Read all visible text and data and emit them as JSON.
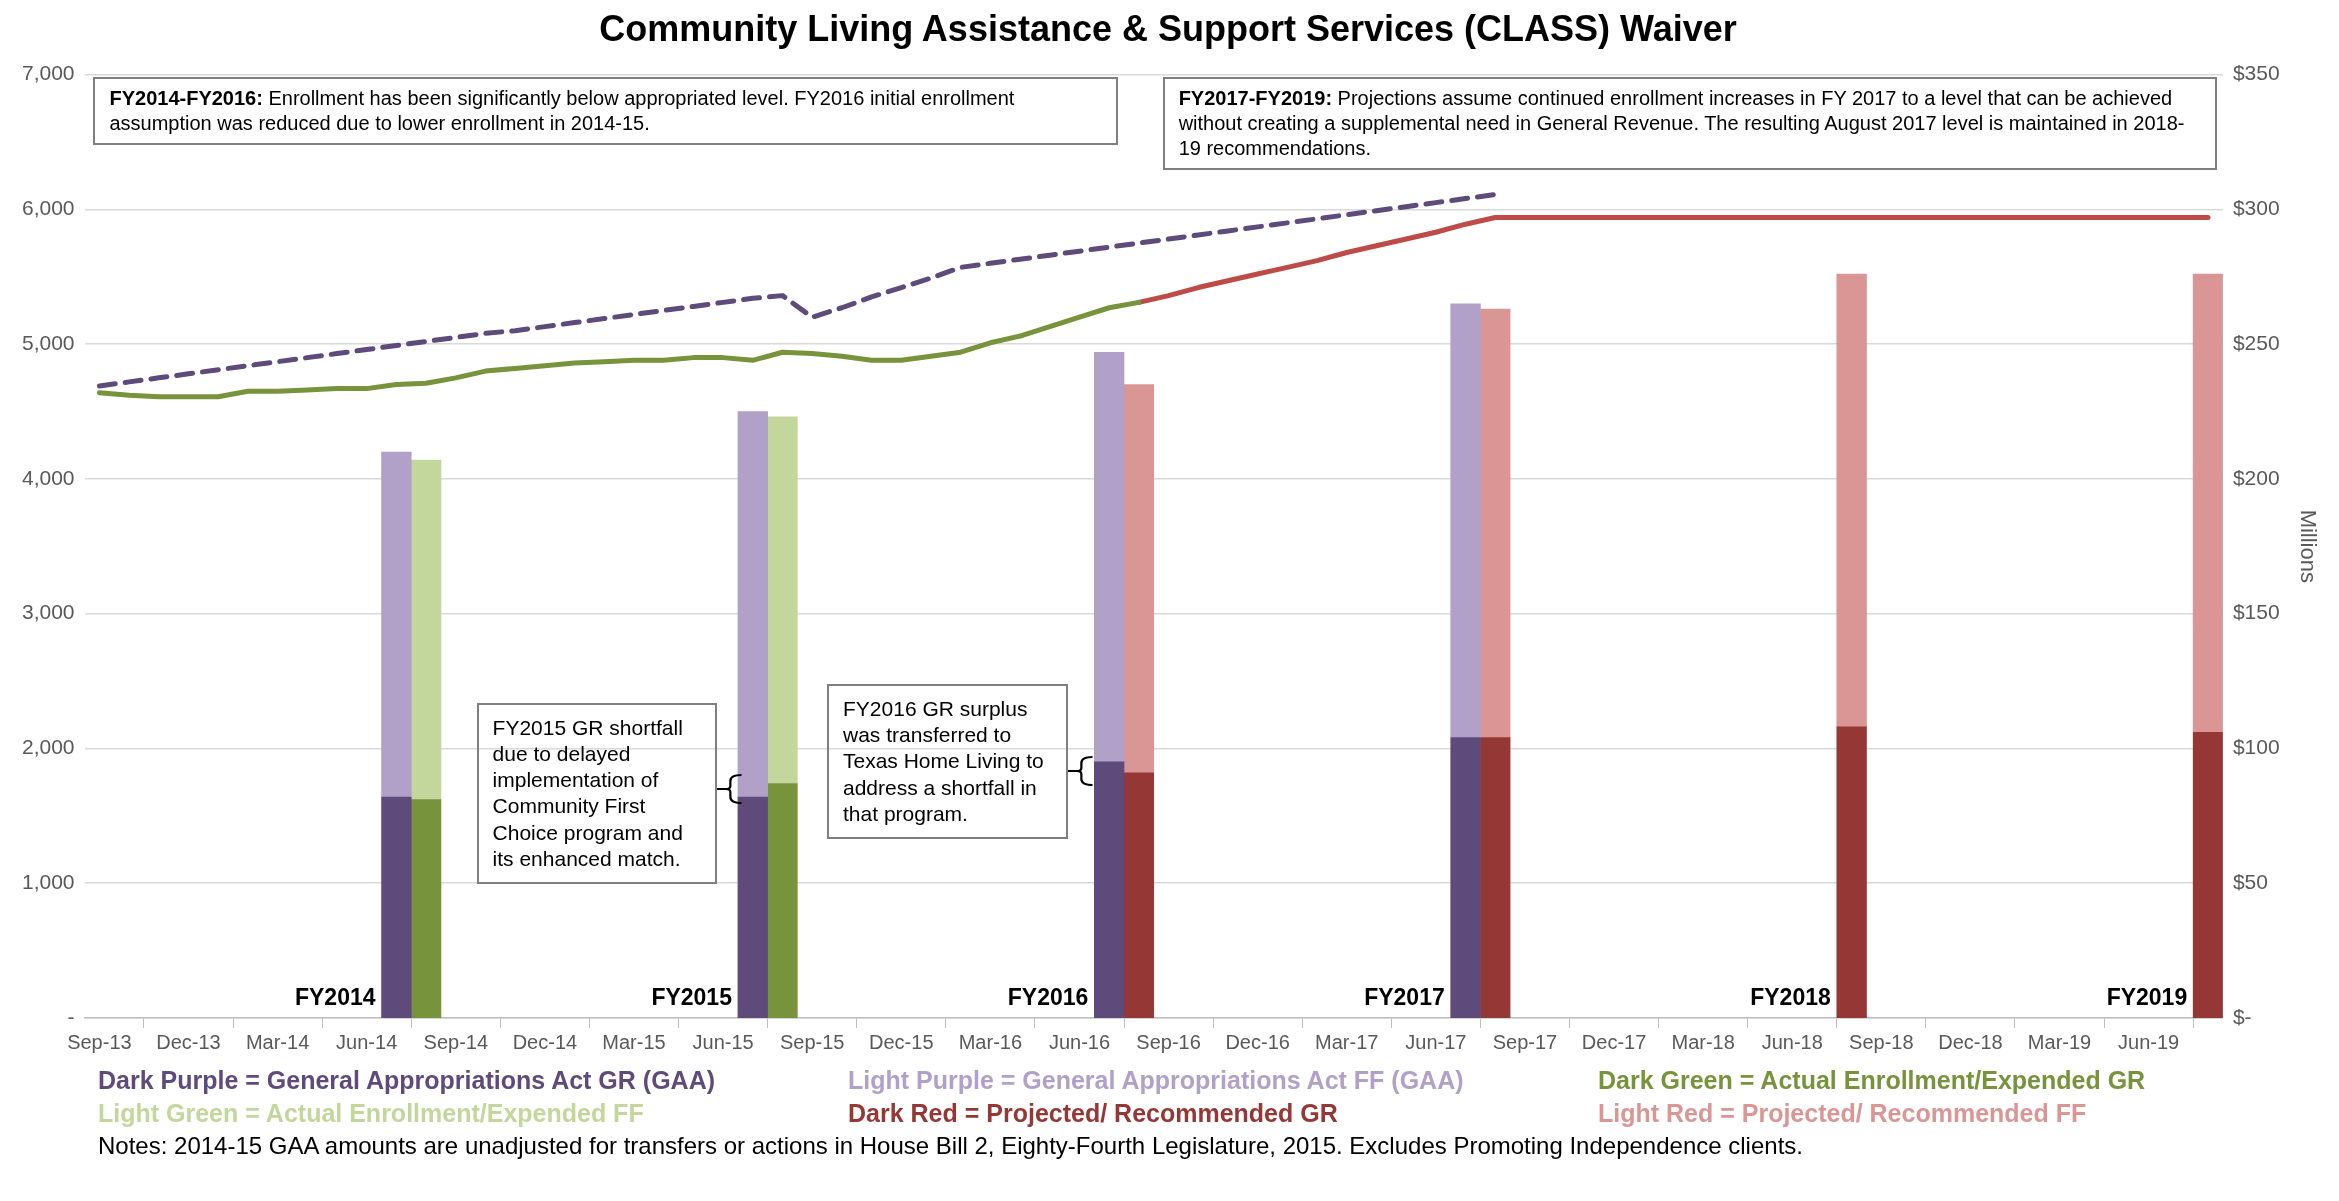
{
  "chart_data": {
    "type": "bar",
    "title": "Community Living Assistance & Support Services (CLASS) Waiver",
    "y2label": "Millions",
    "categories": [
      "Sep-13",
      null,
      null,
      "Dec-13",
      null,
      null,
      "Mar-14",
      null,
      null,
      "Jun-14",
      null,
      null,
      "Sep-14",
      null,
      null,
      "Dec-14",
      null,
      null,
      "Mar-15",
      null,
      null,
      "Jun-15",
      null,
      null,
      "Sep-15",
      null,
      null,
      "Dec-15",
      null,
      null,
      "Mar-16",
      null,
      null,
      "Jun-16",
      null,
      null,
      "Sep-16",
      null,
      null,
      "Dec-16",
      null,
      null,
      "Mar-17",
      null,
      null,
      "Jun-17",
      null,
      null,
      "Sep-17",
      null,
      null,
      "Dec-17",
      null,
      null,
      "Mar-18",
      null,
      null,
      "Jun-18",
      null,
      null,
      "Sep-18",
      null,
      null,
      "Dec-18",
      null,
      null,
      "Mar-19",
      null,
      null,
      "Jun-19",
      null,
      null
    ],
    "series": [
      {
        "name": "Dark Purple = General Appropriations Act GR (GAA)",
        "color": "#5f4b7b",
        "axis": "y2",
        "values": [
          null,
          null,
          null,
          null,
          null,
          null,
          null,
          null,
          null,
          null,
          82,
          null,
          null,
          null,
          null,
          null,
          null,
          null,
          null,
          null,
          null,
          null,
          82,
          null,
          null,
          null,
          null,
          null,
          null,
          null,
          null,
          null,
          null,
          null,
          95,
          null,
          null,
          null,
          null,
          null,
          null,
          null,
          null,
          null,
          null,
          null,
          104,
          null,
          null,
          null,
          null,
          null,
          null,
          null,
          null,
          null,
          null,
          null,
          null,
          null,
          null,
          null,
          null,
          null,
          null,
          null,
          null,
          null,
          null,
          null,
          null,
          null
        ]
      },
      {
        "name": "Light Purple = General Appropriations Act FF (GAA)",
        "color": "#b1a0c7",
        "axis": "y2",
        "values": [
          null,
          null,
          null,
          null,
          null,
          null,
          null,
          null,
          null,
          null,
          128,
          null,
          null,
          null,
          null,
          null,
          null,
          null,
          null,
          null,
          null,
          null,
          143,
          null,
          null,
          null,
          null,
          null,
          null,
          null,
          null,
          null,
          null,
          null,
          152,
          null,
          null,
          null,
          null,
          null,
          null,
          null,
          null,
          null,
          null,
          null,
          161,
          null,
          null,
          null,
          null,
          null,
          null,
          null,
          null,
          null,
          null,
          null,
          null,
          null,
          null,
          null,
          null,
          null,
          null,
          null,
          null,
          null,
          null,
          null,
          null,
          null
        ]
      },
      {
        "name": "Dark Green = Actual Enrollment/Expended GR",
        "color": "#77933c",
        "axis": "y2",
        "values": [
          null,
          null,
          null,
          null,
          null,
          null,
          null,
          null,
          null,
          null,
          null,
          81,
          null,
          null,
          null,
          null,
          null,
          null,
          null,
          null,
          null,
          null,
          null,
          87,
          null,
          null,
          null,
          null,
          null,
          null,
          null,
          null,
          null,
          null,
          null,
          null,
          null,
          null,
          null,
          null,
          null,
          null,
          null,
          null,
          null,
          null,
          null,
          null,
          null,
          null,
          null,
          null,
          null,
          null,
          null,
          null,
          null,
          null,
          null,
          null,
          null,
          null,
          null,
          null,
          null,
          null,
          null,
          null,
          null,
          null,
          null,
          null
        ]
      },
      {
        "name": "Light Green = Actual Enrollment/Expended FF",
        "color": "#c3d69b",
        "axis": "y2",
        "values": [
          null,
          null,
          null,
          null,
          null,
          null,
          null,
          null,
          null,
          null,
          null,
          126,
          null,
          null,
          null,
          null,
          null,
          null,
          null,
          null,
          null,
          null,
          null,
          136,
          null,
          null,
          null,
          null,
          null,
          null,
          null,
          null,
          null,
          null,
          null,
          null,
          null,
          null,
          null,
          null,
          null,
          null,
          null,
          null,
          null,
          null,
          null,
          null,
          null,
          null,
          null,
          null,
          null,
          null,
          null,
          null,
          null,
          null,
          null,
          null,
          null,
          null,
          null,
          null,
          null,
          null,
          null,
          null,
          null,
          null,
          null,
          null
        ]
      },
      {
        "name": "Dark Red = Projected/ Recommended GR",
        "color": "#953735",
        "axis": "y2",
        "values": [
          null,
          null,
          null,
          null,
          null,
          null,
          null,
          null,
          null,
          null,
          null,
          null,
          null,
          null,
          null,
          null,
          null,
          null,
          null,
          null,
          null,
          null,
          null,
          null,
          null,
          null,
          null,
          null,
          null,
          null,
          null,
          null,
          null,
          null,
          null,
          91,
          null,
          null,
          null,
          null,
          null,
          null,
          null,
          null,
          null,
          null,
          null,
          104,
          null,
          null,
          null,
          null,
          null,
          null,
          null,
          null,
          null,
          null,
          null,
          108,
          null,
          null,
          null,
          null,
          null,
          null,
          null,
          null,
          null,
          null,
          null,
          106
        ]
      },
      {
        "name": "Light Red = Projected/ Recommended FF",
        "color": "#d99694",
        "axis": "y2",
        "values": [
          null,
          null,
          null,
          null,
          null,
          null,
          null,
          null,
          null,
          null,
          null,
          null,
          null,
          null,
          null,
          null,
          null,
          null,
          null,
          null,
          null,
          null,
          null,
          null,
          null,
          null,
          null,
          null,
          null,
          null,
          null,
          null,
          null,
          null,
          null,
          144,
          null,
          null,
          null,
          null,
          null,
          null,
          null,
          null,
          null,
          null,
          null,
          159,
          null,
          null,
          null,
          null,
          null,
          null,
          null,
          null,
          null,
          null,
          null,
          168,
          null,
          null,
          null,
          null,
          null,
          null,
          null,
          null,
          null,
          null,
          null,
          170
        ]
      },
      {
        "type": "line",
        "color": "#5f4b7b",
        "line_style": "dashed",
        "values": [
          4690,
          4720,
          4750,
          4780,
          4810,
          4840,
          4870,
          4900,
          4930,
          4960,
          4990,
          5020,
          5050,
          5080,
          5100,
          5130,
          5160,
          5190,
          5220,
          5250,
          5280,
          5310,
          5340,
          5360,
          5200,
          5270,
          5350,
          5420,
          5490,
          5570,
          5600,
          5630,
          5660,
          5690,
          5720,
          5750,
          5780,
          5810,
          5840,
          5870,
          5900,
          5930,
          5960,
          5990,
          6020,
          6050,
          6080,
          6110,
          null,
          null,
          null,
          null,
          null,
          null,
          null,
          null,
          null,
          null,
          null,
          null,
          null,
          null,
          null,
          null,
          null,
          null,
          null,
          null,
          null,
          null,
          null,
          null
        ]
      },
      {
        "type": "line",
        "color": "#77933c",
        "line_style": "solid",
        "values": [
          4640,
          4620,
          4610,
          4610,
          4610,
          4650,
          4650,
          4660,
          4670,
          4670,
          4700,
          4710,
          4750,
          4800,
          4820,
          4840,
          4860,
          4870,
          4880,
          4880,
          4900,
          4900,
          4880,
          4940,
          4930,
          4910,
          4880,
          4880,
          4910,
          4940,
          5010,
          5060,
          5130,
          5200,
          5270,
          5310,
          null,
          null,
          null,
          null,
          null,
          null,
          null,
          null,
          null,
          null,
          null,
          null,
          null,
          null,
          null,
          null,
          null,
          null,
          null,
          null,
          null,
          null,
          null,
          null,
          null,
          null,
          null,
          null,
          null,
          null,
          null,
          null,
          null,
          null,
          null,
          null
        ]
      },
      {
        "type": "line",
        "color": "#be4b48",
        "line_style": "solid",
        "values": [
          null,
          null,
          null,
          null,
          null,
          null,
          null,
          null,
          null,
          null,
          null,
          null,
          null,
          null,
          null,
          null,
          null,
          null,
          null,
          null,
          null,
          null,
          null,
          null,
          null,
          null,
          null,
          null,
          null,
          null,
          null,
          null,
          null,
          null,
          null,
          5310,
          5360,
          5420,
          5470,
          5520,
          5570,
          5620,
          5680,
          5730,
          5780,
          5830,
          5890,
          5940,
          5940,
          5940,
          5940,
          5940,
          5940,
          5940,
          5940,
          5940,
          5940,
          5940,
          5940,
          5940,
          5940,
          5940,
          5940,
          5940,
          5940,
          5940,
          5940,
          5940,
          5940,
          5940,
          5940,
          5940
        ]
      }
    ],
    "stacked": true,
    "marker": "none",
    "ylim": [
      0,
      7000
    ],
    "yticks": [
      {
        "value": 0,
        "label": "-"
      },
      {
        "value": 1000,
        "label": "1,000"
      },
      {
        "value": 2000,
        "label": "2,000"
      },
      {
        "value": 3000,
        "label": "3,000"
      },
      {
        "value": 4000,
        "label": "4,000"
      },
      {
        "value": 5000,
        "label": "5,000"
      },
      {
        "value": 6000,
        "label": "6,000"
      },
      {
        "value": 7000,
        "label": "7,000"
      }
    ],
    "y2lim": [
      0,
      350
    ],
    "y2ticks": [
      {
        "value": 0,
        "label": "$-"
      },
      {
        "value": 50,
        "label": "$50"
      },
      {
        "value": 100,
        "label": "$100"
      },
      {
        "value": 150,
        "label": "$150"
      },
      {
        "value": 200,
        "label": "$200"
      },
      {
        "value": 250,
        "label": "$250"
      },
      {
        "value": 300,
        "label": "$300"
      },
      {
        "value": 350,
        "label": "$350"
      }
    ],
    "grid": "y",
    "legend": "bottom",
    "annotations": [
      "FY2014-FY2016: Enrollment has been significantly below appropriated level.  FY2016 initial enrollment assumption was reduced due to lower enrollment in 2014-15.",
      "FY2017-FY2019: Projections assume continued enrollment increases in FY 2017 to a level that can be achieved without creating a supplemental need in General Revenue. The resulting August 2017 level is maintained in 2018-19 recommendations.",
      "FY2015 GR shortfall due to delayed implementation of Community First Choice program and its enhanced match.",
      "FY2016 GR surplus was transferred to Texas Home Living to address a shortfall in that program.",
      "FY2014",
      "FY2015",
      "FY2016",
      "FY2017",
      "FY2018",
      "FY2019",
      "Notes: 2014-15 GAA amounts are unadjusted for transfers or actions in House Bill 2, Eighty-Fourth Legislature, 2015. Excludes Promoting Independence clients."
    ]
  }
}
